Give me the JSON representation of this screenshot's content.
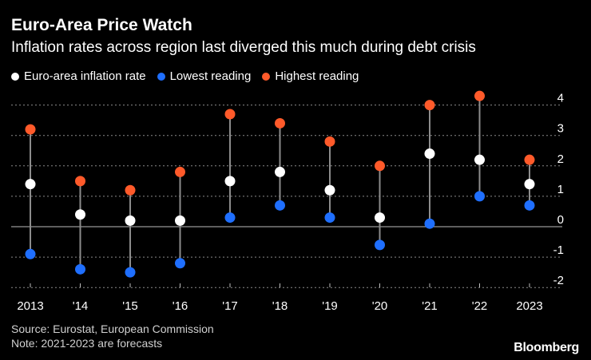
{
  "header": {
    "title": "Euro-Area Price Watch",
    "subtitle": "Inflation rates across region last diverged this much during debt crisis"
  },
  "legend": [
    {
      "label": "Euro-area inflation rate",
      "color": "#ffffff"
    },
    {
      "label": "Lowest reading",
      "color": "#1f6fff"
    },
    {
      "label": "Highest reading",
      "color": "#ff5a2a"
    }
  ],
  "footer": {
    "source": "Source: Eurostat, European Commission",
    "note": "Note: 2021-2023 are forecasts",
    "brand": "Bloomberg"
  },
  "chart_data": {
    "type": "dot-range",
    "title": "Euro-Area Price Watch",
    "subtitle": "Inflation rates across region last diverged this much during debt crisis",
    "xlabel": "",
    "ylabel": "",
    "ylim": [
      -2.2,
      4.3
    ],
    "yticks": [
      4,
      3,
      2,
      1,
      0,
      -1,
      -2
    ],
    "ytick_labels": [
      "4",
      "3",
      "2",
      "1",
      "0",
      "-1",
      "-2"
    ],
    "grid": true,
    "legend_position": "top-left",
    "categories": [
      "2013",
      "'14",
      "'15",
      "'16",
      "'17",
      "'18",
      "'19",
      "'20",
      "'21",
      "'22",
      "2023"
    ],
    "series": [
      {
        "name": "Euro-area inflation rate",
        "color": "#ffffff",
        "values": [
          1.4,
          0.4,
          0.2,
          0.2,
          1.5,
          1.8,
          1.2,
          0.3,
          2.4,
          2.2,
          1.4
        ]
      },
      {
        "name": "Lowest reading",
        "color": "#1f6fff",
        "values": [
          -0.9,
          -1.4,
          -1.5,
          -1.2,
          0.3,
          0.7,
          0.3,
          -0.6,
          0.1,
          1.0,
          0.7
        ]
      },
      {
        "name": "Highest reading",
        "color": "#ff5a2a",
        "values": [
          3.2,
          1.5,
          1.2,
          1.8,
          3.7,
          3.4,
          2.8,
          2.0,
          4.0,
          4.3,
          2.2
        ]
      }
    ]
  }
}
